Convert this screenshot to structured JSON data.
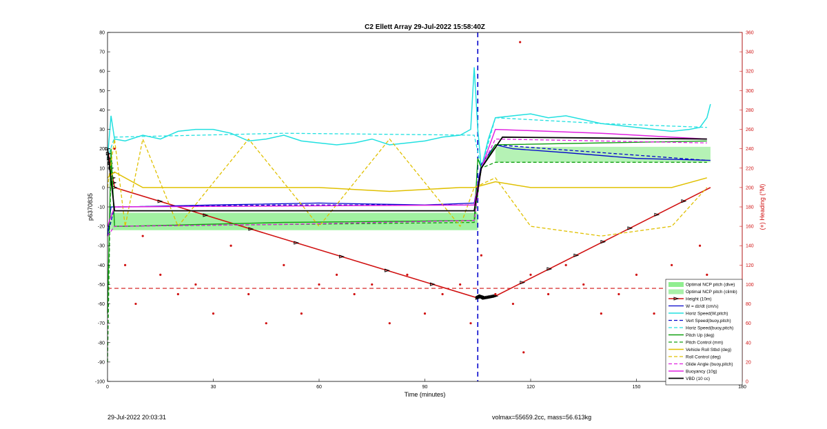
{
  "chart_data": {
    "type": "line",
    "title": "C2 Ellett Array 29-Jul-2022 15:58:40Z",
    "xlabel": "Time (minutes)",
    "ylabel": "p6370835",
    "ylabel_right": "(+) Heading (°M)",
    "xlim": [
      0,
      180
    ],
    "ylim": [
      -100,
      80
    ],
    "ylim_right": [
      0,
      360
    ],
    "x_ticks": [
      0,
      30,
      60,
      90,
      120,
      150,
      180
    ],
    "y_ticks": [
      -100,
      -90,
      -80,
      -70,
      -60,
      -50,
      -40,
      -30,
      -20,
      -10,
      0,
      10,
      20,
      30,
      40,
      50,
      60,
      70,
      80
    ],
    "y_ticks_right": [
      0,
      20,
      40,
      60,
      80,
      100,
      120,
      140,
      160,
      180,
      200,
      220,
      240,
      260,
      280,
      300,
      320,
      340,
      360
    ],
    "grid": false,
    "legend_position": "bottom-right",
    "vertical_marker_x": 105,
    "horizontal_marker_y": -52,
    "colors": {
      "nc_dive": "#90ee90",
      "nc_climb": "#a8f0a8",
      "height": "#d01010",
      "w": "#0000cc",
      "horiz_speed": "#20e0e0",
      "vert_speed": "#0000cc",
      "horiz_speed_model": "#20e0e0",
      "pitch": "#10a010",
      "pitch_control": "#10a010",
      "roll": "#e0c000",
      "roll_control": "#e0c000",
      "glide_angle": "#e020e0",
      "buoyancy": "#e020e0",
      "vbd": "#000000",
      "heading": "#d01010"
    },
    "series": [
      {
        "name": "Optimal NCP pitch (dive)",
        "type": "band",
        "x": [
          1,
          105
        ],
        "low": [
          -22,
          -22
        ],
        "high": [
          -13,
          -13
        ]
      },
      {
        "name": "Optimal NCP pitch (climb)",
        "type": "band",
        "x": [
          110,
          171
        ],
        "low": [
          13,
          13
        ],
        "high": [
          21,
          21
        ]
      },
      {
        "name": "Height (10m)",
        "x": [
          0,
          2,
          105,
          106,
          107,
          110,
          171
        ],
        "values": [
          20,
          0,
          -57,
          -56,
          -57,
          -56,
          0
        ]
      },
      {
        "name": "W = dz/dt (cm/s)",
        "x": [
          0,
          1,
          5,
          30,
          60,
          90,
          104,
          106,
          110,
          115,
          130,
          150,
          171
        ],
        "values": [
          -25,
          -10,
          -10,
          -9,
          -8,
          -9,
          -8,
          12,
          22,
          20,
          18,
          15,
          14
        ]
      },
      {
        "name": "Horiz Speed(W,pitch)",
        "x": [
          0,
          1,
          2,
          5,
          10,
          15,
          20,
          25,
          30,
          35,
          40,
          45,
          50,
          55,
          60,
          65,
          70,
          75,
          80,
          85,
          90,
          95,
          100,
          103,
          104,
          105,
          106,
          108,
          110,
          115,
          120,
          125,
          130,
          135,
          140,
          145,
          150,
          155,
          160,
          165,
          168,
          170,
          171
        ],
        "values": [
          15,
          37,
          25,
          24,
          27,
          25,
          29,
          30,
          30,
          28,
          24,
          25,
          27,
          24,
          23,
          22,
          23,
          25,
          22,
          23,
          24,
          26,
          27,
          30,
          62,
          30,
          10,
          25,
          36,
          37,
          38,
          36,
          37,
          35,
          33,
          32,
          31,
          30,
          29,
          30,
          31,
          36,
          43
        ]
      },
      {
        "name": "Vert Speed(buoy,pitch)",
        "x": [
          0,
          2,
          50,
          104,
          106,
          110,
          170
        ],
        "values": [
          -25,
          -10,
          -9,
          -9,
          12,
          22,
          14
        ]
      },
      {
        "name": "Horiz Speed(buoy,pitch)",
        "x": [
          0,
          2,
          50,
          104,
          106,
          110,
          140,
          170
        ],
        "values": [
          15,
          26,
          28,
          27,
          10,
          36,
          33,
          31
        ]
      },
      {
        "name": "Pitch Up (deg)",
        "x": [
          0,
          1,
          2,
          5,
          50,
          104,
          105,
          106,
          110,
          170
        ],
        "values": [
          -65,
          20,
          -20,
          -20,
          -18,
          -17,
          15,
          10,
          22,
          24
        ]
      },
      {
        "name": "Pitch Control (mm)",
        "x": [
          0,
          1,
          2,
          104,
          106,
          110,
          170
        ],
        "values": [
          -90,
          15,
          -20,
          -18,
          10,
          13,
          13
        ]
      },
      {
        "name": "Vehicle Roll Stbd (deg)",
        "x": [
          0,
          2,
          10,
          20,
          40,
          60,
          80,
          100,
          104,
          110,
          120,
          140,
          160,
          170
        ],
        "values": [
          5,
          8,
          0,
          0,
          0,
          0,
          -2,
          0,
          0,
          3,
          0,
          0,
          0,
          5
        ]
      },
      {
        "name": "Roll Control (deg)",
        "x": [
          0,
          2,
          5,
          10,
          20,
          40,
          60,
          80,
          100,
          104,
          110,
          120,
          140,
          160,
          170
        ],
        "values": [
          0,
          25,
          -20,
          25,
          -20,
          25,
          -20,
          25,
          -20,
          0,
          5,
          -20,
          -25,
          -20,
          0
        ]
      },
      {
        "name": "Glide Angle (buoy,pitch)",
        "x": [
          0,
          2,
          50,
          104,
          106,
          110,
          170
        ],
        "values": [
          -25,
          -20,
          -19,
          -17,
          10,
          25,
          23
        ]
      },
      {
        "name": "Buoyancy (10g)",
        "x": [
          0,
          2,
          104,
          106,
          110,
          140,
          170
        ],
        "values": [
          -20,
          -10,
          -9,
          10,
          30,
          28,
          25
        ]
      },
      {
        "name": "VBD (10 cc)",
        "x": [
          0,
          2,
          104,
          106,
          112,
          170
        ],
        "values": [
          20,
          -12,
          -12,
          10,
          26,
          25
        ]
      },
      {
        "name": "(+) Heading (°M)",
        "axis": "right",
        "type": "scatter",
        "x": [
          2,
          5,
          8,
          10,
          15,
          20,
          25,
          30,
          35,
          40,
          45,
          50,
          55,
          60,
          65,
          70,
          75,
          80,
          85,
          90,
          95,
          100,
          103,
          106,
          110,
          115,
          117,
          118,
          120,
          125,
          130,
          135,
          140,
          145,
          150,
          155,
          160,
          165,
          168,
          170
        ],
        "values": [
          240,
          120,
          80,
          150,
          110,
          90,
          100,
          70,
          140,
          90,
          60,
          120,
          70,
          100,
          110,
          90,
          100,
          60,
          110,
          70,
          90,
          100,
          60,
          130,
          90,
          80,
          350,
          30,
          110,
          90,
          120,
          100,
          70,
          90,
          110,
          70,
          120,
          80,
          140,
          110
        ]
      }
    ],
    "legend": [
      "Optimal NCP pitch (dive)",
      "Optimal NCP pitch (climb)",
      "Height (10m)",
      "W = dz/dt (cm/s)",
      "Horiz Speed(W,pitch)",
      "Vert Speed(buoy,pitch)",
      "Horiz Speed(buoy,pitch)",
      "Pitch Up (deg)",
      "Pitch Control (mm)",
      "Vehicle Roll Stbd (deg)",
      "Roll Control (deg)",
      "Glide Angle (buoy,pitch)",
      "Buoyancy (10g)",
      "VBD (10 cc)"
    ]
  },
  "footer": {
    "left": "29-Jul-2022 20:03:31",
    "right": "volmax=55659.2cc, mass=56.613kg"
  }
}
